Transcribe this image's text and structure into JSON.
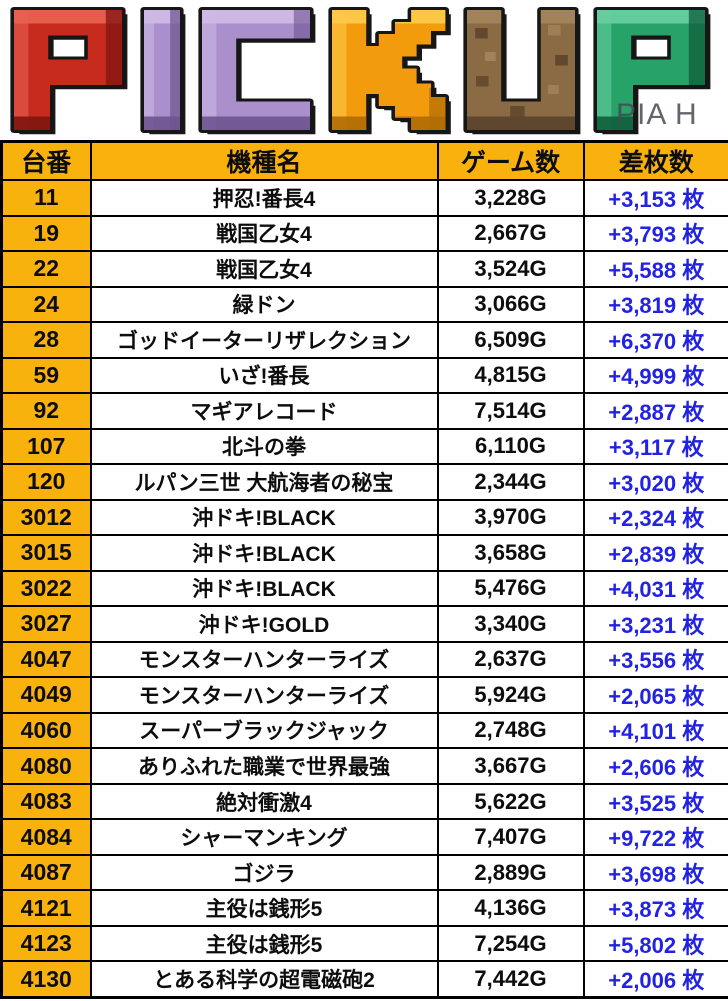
{
  "logo": {
    "text": "PICKUP",
    "watermark": "PIA H",
    "letters": [
      {
        "char": "P",
        "color": "#c62b1e",
        "light": "#e8604f",
        "dark": "#801510"
      },
      {
        "char": "I",
        "color": "#a98fcb",
        "light": "#cdb9e6",
        "dark": "#6e548f"
      },
      {
        "char": "C",
        "color": "#a98fcb",
        "light": "#cdb9e6",
        "dark": "#6e548f"
      },
      {
        "char": "K",
        "color": "#f29b0c",
        "light": "#fdc84a",
        "dark": "#b06c05"
      },
      {
        "char": "U",
        "color": "#8a6b44",
        "light": "#a8885e",
        "dark": "#57402a"
      },
      {
        "char": "P",
        "color": "#27a36a",
        "light": "#66cfa0",
        "dark": "#0f5e3c"
      }
    ]
  },
  "table": {
    "header_bg": "#f9b20d",
    "diff_color": "#2222e2",
    "columns": [
      "台番",
      "機種名",
      "ゲーム数",
      "差枚数"
    ],
    "rows": [
      {
        "no": "11",
        "name": "押忍!番長4",
        "games": "3,228G",
        "diff": "+3,153 枚"
      },
      {
        "no": "19",
        "name": "戦国乙女4",
        "games": "2,667G",
        "diff": "+3,793 枚"
      },
      {
        "no": "22",
        "name": "戦国乙女4",
        "games": "3,524G",
        "diff": "+5,588 枚"
      },
      {
        "no": "24",
        "name": "緑ドン",
        "games": "3,066G",
        "diff": "+3,819 枚"
      },
      {
        "no": "28",
        "name": "ゴッドイーターリザレクション",
        "games": "6,509G",
        "diff": "+6,370 枚"
      },
      {
        "no": "59",
        "name": "いざ!番長",
        "games": "4,815G",
        "diff": "+4,999 枚"
      },
      {
        "no": "92",
        "name": "マギアレコード",
        "games": "7,514G",
        "diff": "+2,887 枚"
      },
      {
        "no": "107",
        "name": "北斗の拳",
        "games": "6,110G",
        "diff": "+3,117 枚"
      },
      {
        "no": "120",
        "name": "ルパン三世 大航海者の秘宝",
        "games": "2,344G",
        "diff": "+3,020 枚"
      },
      {
        "no": "3012",
        "name": "沖ドキ!BLACK",
        "games": "3,970G",
        "diff": "+2,324 枚"
      },
      {
        "no": "3015",
        "name": "沖ドキ!BLACK",
        "games": "3,658G",
        "diff": "+2,839 枚"
      },
      {
        "no": "3022",
        "name": "沖ドキ!BLACK",
        "games": "5,476G",
        "diff": "+4,031 枚"
      },
      {
        "no": "3027",
        "name": "沖ドキ!GOLD",
        "games": "3,340G",
        "diff": "+3,231 枚"
      },
      {
        "no": "4047",
        "name": "モンスターハンターライズ",
        "games": "2,637G",
        "diff": "+3,556 枚"
      },
      {
        "no": "4049",
        "name": "モンスターハンターライズ",
        "games": "5,924G",
        "diff": "+2,065 枚"
      },
      {
        "no": "4060",
        "name": "スーパーブラックジャック",
        "games": "2,748G",
        "diff": "+4,101 枚"
      },
      {
        "no": "4080",
        "name": "ありふれた職業で世界最強",
        "games": "3,667G",
        "diff": "+2,606 枚"
      },
      {
        "no": "4083",
        "name": "絶対衝激4",
        "games": "5,622G",
        "diff": "+3,525 枚"
      },
      {
        "no": "4084",
        "name": "シャーマンキング",
        "games": "7,407G",
        "diff": "+9,722 枚"
      },
      {
        "no": "4087",
        "name": "ゴジラ",
        "games": "2,889G",
        "diff": "+3,698 枚"
      },
      {
        "no": "4121",
        "name": "主役は銭形5",
        "games": "4,136G",
        "diff": "+3,873 枚"
      },
      {
        "no": "4123",
        "name": "主役は銭形5",
        "games": "7,254G",
        "diff": "+5,802 枚"
      },
      {
        "no": "4130",
        "name": "とある科学の超電磁砲2",
        "games": "7,442G",
        "diff": "+2,006 枚"
      }
    ]
  }
}
